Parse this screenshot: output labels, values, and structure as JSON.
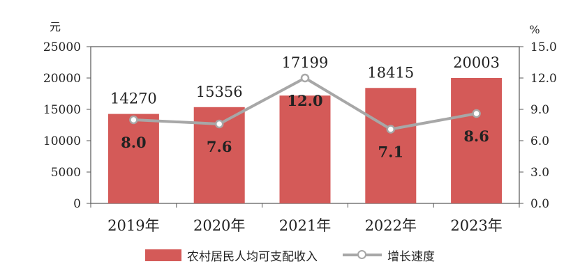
{
  "chart_data": {
    "type": "bar",
    "categories": [
      "2019年",
      "2020年",
      "2021年",
      "2022年",
      "2023年"
    ],
    "series": [
      {
        "name": "农村居民人均可支配收入",
        "type": "bar",
        "axis": "left",
        "values": [
          14270,
          15356,
          17199,
          18415,
          20003
        ]
      },
      {
        "name": "增长速度",
        "type": "line",
        "axis": "right",
        "values": [
          8.0,
          7.6,
          12.0,
          7.1,
          8.6
        ]
      }
    ],
    "left_axis": {
      "unit": "元",
      "ticks": [
        "0",
        "5000",
        "10000",
        "15000",
        "20000",
        "25000"
      ],
      "ylim": [
        0,
        25000
      ]
    },
    "right_axis": {
      "unit": "%",
      "ticks": [
        "0.0",
        "3.0",
        "6.0",
        "9.0",
        "12.0",
        "15.0"
      ],
      "ylim": [
        0,
        15
      ]
    },
    "bar_labels": [
      "14270",
      "15356",
      "17199",
      "18415",
      "20003"
    ],
    "line_labels": [
      "8.0",
      "7.6",
      "12.0",
      "7.1",
      "8.6"
    ],
    "grid": false,
    "legend_placement": "bottom",
    "colors": {
      "bar": "#d45a58",
      "line": "#a7a7a7",
      "axis": "#555555",
      "text": "#222222"
    }
  }
}
